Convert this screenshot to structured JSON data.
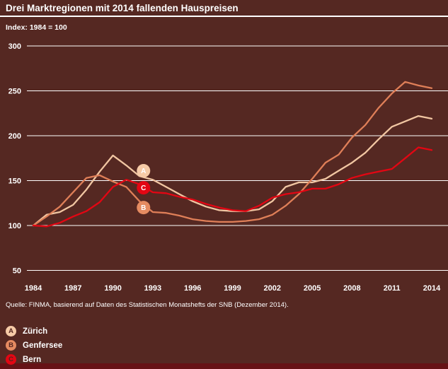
{
  "header": {
    "title": "Drei Marktregionen mit 2014 fallenden Hauspreisen",
    "subtitle": "Index: 1984 = 100"
  },
  "source_note": "Quelle: FINMA, basierend auf Daten des Statistischen Monatshefts der SNB (Dezember 2014).",
  "colors": {
    "background": "#552822",
    "bottom_bar": "#661216",
    "text": "#ffffff",
    "gridline": "#ffffff",
    "marker_text": "#53251f"
  },
  "chart_data": {
    "type": "line",
    "title": "Drei Marktregionen mit 2014 fallenden Hauspreisen",
    "index_note": "Index: 1984 = 100",
    "grid": true,
    "ylim": [
      50,
      300
    ],
    "y_ticks": [
      300,
      250,
      200,
      150,
      100,
      50
    ],
    "x_tick_labels": [
      1984,
      1987,
      1990,
      1993,
      1996,
      1999,
      2002,
      2005,
      2008,
      2011,
      2014
    ],
    "x": [
      1984,
      1985,
      1986,
      1987,
      1988,
      1989,
      1990,
      1991,
      1992,
      1993,
      1994,
      1995,
      1996,
      1997,
      1998,
      1999,
      2000,
      2001,
      2002,
      2003,
      2004,
      2005,
      2006,
      2007,
      2008,
      2009,
      2010,
      2011,
      2012,
      2013,
      2014
    ],
    "series": [
      {
        "id": "zurich",
        "name": "Zürich",
        "letter": "A",
        "color": "#f1c6a2",
        "marker_fill": "#f6cba7",
        "marker": {
          "year": 1992.3,
          "value": 161
        },
        "values": [
          100,
          112,
          115,
          123,
          140,
          160,
          178,
          167,
          155,
          151,
          143,
          135,
          127,
          121,
          117,
          116,
          116,
          118,
          127,
          143,
          148,
          148,
          152,
          161,
          170,
          181,
          196,
          210,
          216,
          222,
          219
        ]
      },
      {
        "id": "genfersee",
        "name": "Genfersee",
        "letter": "B",
        "color": "#df7f58",
        "marker_fill": "#e58b61",
        "marker": {
          "year": 1992.3,
          "value": 120
        },
        "values": [
          100,
          110,
          121,
          137,
          153,
          156,
          149,
          143,
          127,
          115,
          114,
          111,
          107,
          105,
          104,
          104,
          105,
          107,
          112,
          122,
          135,
          152,
          170,
          179,
          198,
          212,
          231,
          247,
          260,
          256,
          253
        ]
      },
      {
        "id": "bern",
        "name": "Bern",
        "letter": "C",
        "color": "#e30613",
        "marker_fill": "#e30613",
        "marker": {
          "year": 1992.3,
          "value": 142
        },
        "values": [
          100,
          99,
          103,
          110,
          116,
          126,
          143,
          151,
          146,
          137,
          136,
          132,
          129,
          124,
          120,
          117,
          116,
          122,
          131,
          135,
          137,
          141,
          141,
          146,
          153,
          157,
          160,
          163,
          175,
          187,
          184
        ]
      }
    ]
  },
  "legend": {
    "items": [
      {
        "letter": "A",
        "label": "Zürich",
        "color": "#f6cba7"
      },
      {
        "letter": "B",
        "label": "Genfersee",
        "color": "#e58b61"
      },
      {
        "letter": "C",
        "label": "Bern",
        "color": "#e30613"
      }
    ]
  }
}
